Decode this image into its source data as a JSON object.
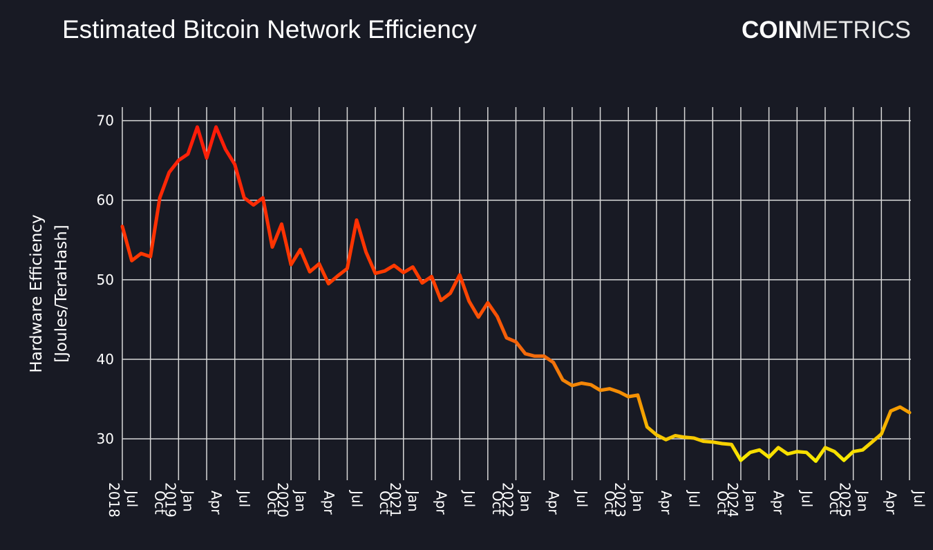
{
  "chart_data": {
    "type": "line",
    "title": "Estimated Bitcoin Network Efficiency",
    "logo": {
      "bold": "COIN",
      "light": "METRICS"
    },
    "ylabel": [
      "Hardware Efficiency",
      "[Joules/TeraHash]"
    ],
    "x": [
      "2018-07",
      "2018-08",
      "2018-09",
      "2018-10",
      "2018-11",
      "2018-12",
      "2019-01",
      "2019-02",
      "2019-03",
      "2019-04",
      "2019-05",
      "2019-06",
      "2019-07",
      "2019-08",
      "2019-09",
      "2019-10",
      "2019-11",
      "2019-12",
      "2020-01",
      "2020-02",
      "2020-03",
      "2020-04",
      "2020-05",
      "2020-06",
      "2020-07",
      "2020-08",
      "2020-09",
      "2020-10",
      "2020-11",
      "2020-12",
      "2021-01",
      "2021-02",
      "2021-03",
      "2021-04",
      "2021-05",
      "2021-06",
      "2021-07",
      "2021-08",
      "2021-09",
      "2021-10",
      "2021-11",
      "2021-12",
      "2022-01",
      "2022-02",
      "2022-03",
      "2022-04",
      "2022-05",
      "2022-06",
      "2022-07",
      "2022-08",
      "2022-09",
      "2022-10",
      "2022-11",
      "2022-12",
      "2023-01",
      "2023-02",
      "2023-03",
      "2023-04",
      "2023-05",
      "2023-06",
      "2023-07",
      "2023-08",
      "2023-09",
      "2023-10",
      "2023-11",
      "2023-12",
      "2024-01",
      "2024-02",
      "2024-03",
      "2024-04",
      "2024-05",
      "2024-06",
      "2024-07",
      "2024-08",
      "2024-09",
      "2024-10",
      "2024-11",
      "2024-12",
      "2025-01",
      "2025-02",
      "2025-03",
      "2025-04",
      "2025-05",
      "2025-06",
      "2025-07"
    ],
    "values": [
      56.7,
      52.4,
      53.3,
      52.9,
      60.3,
      63.5,
      65,
      65.8,
      69.2,
      65.3,
      69.2,
      66.4,
      64.5,
      60.3,
      59.4,
      60.3,
      54.1,
      57,
      51.9,
      53.8,
      51,
      52,
      49.5,
      50.5,
      51.4,
      57.5,
      53.5,
      50.8,
      51.1,
      51.8,
      50.9,
      51.6,
      49.6,
      50.4,
      47.4,
      48.3,
      50.6,
      47.3,
      45.3,
      47.1,
      45.4,
      42.7,
      42.2,
      40.7,
      40.4,
      40.4,
      39.6,
      37.4,
      36.7,
      37,
      36.8,
      36.1,
      36.3,
      35.9,
      35.3,
      35.5,
      31.5,
      30.5,
      29.9,
      30.4,
      30.2,
      30.1,
      29.7,
      29.6,
      29.4,
      29.3,
      27.3,
      28.3,
      28.6,
      27.7,
      28.9,
      28.1,
      28.4,
      28.3,
      27.2,
      28.9,
      28.4,
      27.3,
      28.4,
      28.6,
      29.6,
      30.6,
      33.5,
      34,
      33.3
    ],
    "colorscale": [
      {
        "value": 70,
        "color": "#ff1a0a"
      },
      {
        "value": 50,
        "color": "#ff3c00"
      },
      {
        "value": 40,
        "color": "#f26e0c"
      },
      {
        "value": 33,
        "color": "#f5a300"
      },
      {
        "value": 27,
        "color": "#f8f000"
      }
    ],
    "xlim": [
      "2018-07",
      "2025-07"
    ],
    "ylim": [
      24.8,
      71.7
    ],
    "yticks": [
      30,
      40,
      50,
      60,
      70
    ],
    "xticks": [
      {
        "value": "2018-07",
        "label": "Jul 2018"
      },
      {
        "value": "2018-10",
        "label": "Oct"
      },
      {
        "value": "2019-01",
        "label": "Jan 2019"
      },
      {
        "value": "2019-04",
        "label": "Apr"
      },
      {
        "value": "2019-07",
        "label": "Jul"
      },
      {
        "value": "2019-10",
        "label": "Oct"
      },
      {
        "value": "2020-01",
        "label": "Jan 2020"
      },
      {
        "value": "2020-04",
        "label": "Apr"
      },
      {
        "value": "2020-07",
        "label": "Jul"
      },
      {
        "value": "2020-10",
        "label": "Oct"
      },
      {
        "value": "2021-01",
        "label": "Jan 2021"
      },
      {
        "value": "2021-04",
        "label": "Apr"
      },
      {
        "value": "2021-07",
        "label": "Jul"
      },
      {
        "value": "2021-10",
        "label": "Oct"
      },
      {
        "value": "2022-01",
        "label": "Jan 2022"
      },
      {
        "value": "2022-04",
        "label": "Apr"
      },
      {
        "value": "2022-07",
        "label": "Jul"
      },
      {
        "value": "2022-10",
        "label": "Oct"
      },
      {
        "value": "2023-01",
        "label": "Jan 2023"
      },
      {
        "value": "2023-04",
        "label": "Apr"
      },
      {
        "value": "2023-07",
        "label": "Jul"
      },
      {
        "value": "2023-10",
        "label": "Oct"
      },
      {
        "value": "2024-01",
        "label": "Jan 2024"
      },
      {
        "value": "2024-04",
        "label": "Apr"
      },
      {
        "value": "2024-07",
        "label": "Jul"
      },
      {
        "value": "2024-10",
        "label": "Oct"
      },
      {
        "value": "2025-01",
        "label": "Jan 2025"
      },
      {
        "value": "2025-04",
        "label": "Apr"
      },
      {
        "value": "2025-07",
        "label": "Jul"
      }
    ],
    "grid": true
  }
}
